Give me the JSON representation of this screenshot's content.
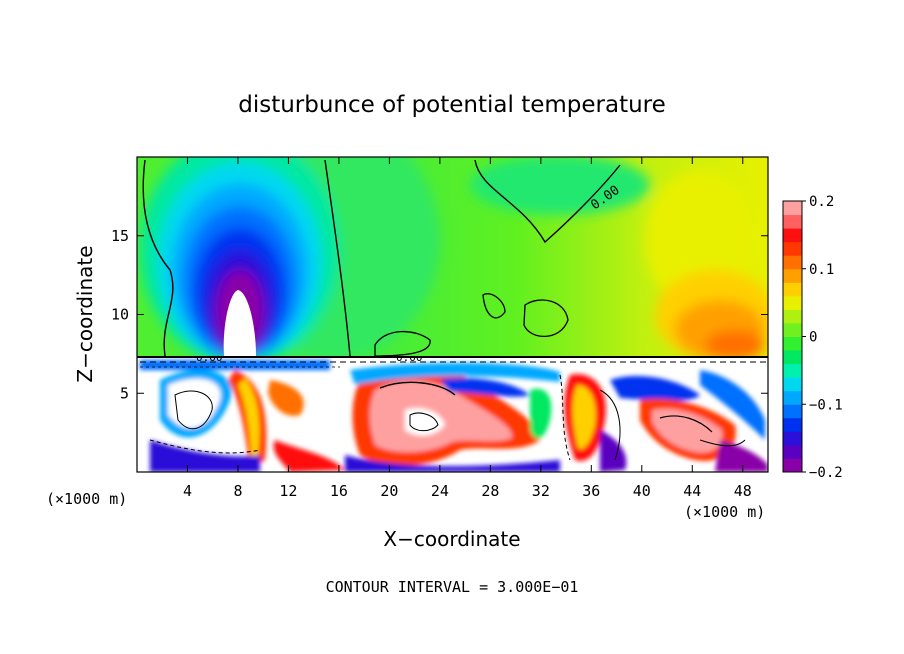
{
  "chart_data": {
    "type": "heatmap",
    "title": "disturbunce of potential temperature",
    "xlabel": "X−coordinate",
    "ylabel": "Z−coordinate",
    "x_unit_left": "(×1000 m)",
    "x_unit_right": "(×1000 m)",
    "footer": "CONTOUR INTERVAL = 3.000E−01",
    "xlim": [
      0,
      50
    ],
    "ylim": [
      0,
      20
    ],
    "x_ticks": [
      4,
      8,
      12,
      16,
      20,
      24,
      28,
      32,
      36,
      40,
      44,
      48
    ],
    "y_ticks": [
      5,
      10,
      15
    ],
    "colorbar": {
      "range": [
        -0.2,
        0.2
      ],
      "tick_labels": [
        "0.2",
        "0.1",
        "0",
        "−0.1",
        "−0.2"
      ],
      "tick_values": [
        0.2,
        0.1,
        0,
        -0.1,
        -0.2
      ],
      "colors": [
        "#8a00a8",
        "#5a00c0",
        "#2a10d8",
        "#0030f0",
        "#0070ff",
        "#00a8ff",
        "#00d8f0",
        "#00f0b0",
        "#00e860",
        "#30f030",
        "#70f020",
        "#b0f010",
        "#e8f000",
        "#ffd000",
        "#ffa000",
        "#ff7000",
        "#ff3800",
        "#ff1010",
        "#ff6060",
        "#ffa0a0"
      ]
    },
    "contour_labels": [
      "0.00",
      "0.00",
      "0.00"
    ],
    "features": [
      {
        "label": "cold anomaly column",
        "x": 8,
        "z_top": 19,
        "value": -0.2
      },
      {
        "label": "warm region upper right",
        "x": 45,
        "z": 10,
        "value": 0.12
      },
      {
        "label": "mixed layer turbulence",
        "z_max": 7.3,
        "value_range": [
          -0.3,
          0.3
        ]
      }
    ]
  }
}
